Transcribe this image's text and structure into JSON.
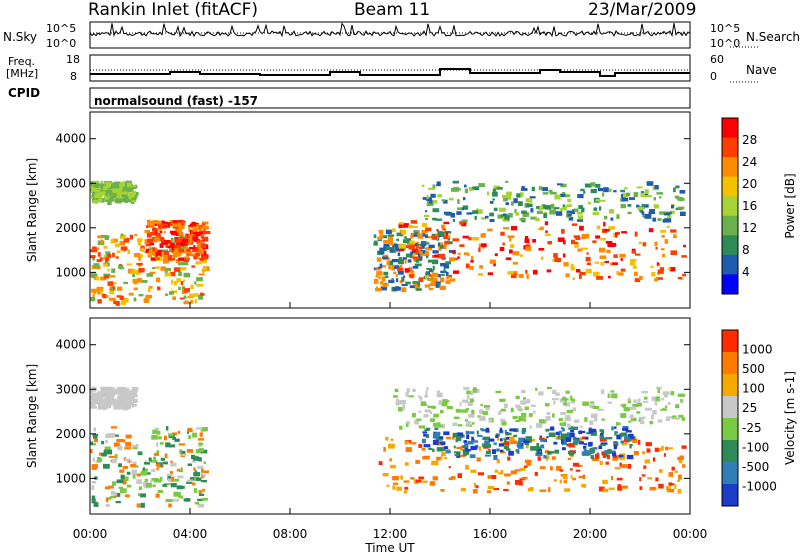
{
  "header": {
    "station": "Rankin Inlet (fitACF)",
    "beam": "Beam 11",
    "date": "23/Mar/2009"
  },
  "strips": {
    "nsky_label": "N.Sky",
    "nsearch_label": "N.Search",
    "nsky_ticks": [
      "10^5",
      "10^0"
    ],
    "nsearch_ticks": [
      "10^5",
      "10^0"
    ],
    "freq_label_1": "Freq.",
    "freq_label_2": "[MHz]",
    "freq_ticks": [
      "18",
      "8"
    ],
    "nave_label": "Nave",
    "nave_ticks": [
      "60",
      "0"
    ],
    "cpid_label": "CPID",
    "cpid_value": "normalsound (fast) -157"
  },
  "chart_data": [
    {
      "type": "heatmap",
      "name": "power",
      "ylabel": "Slant Range [km]",
      "yticks": [
        "1000",
        "2000",
        "3000",
        "4000"
      ],
      "ylim": [
        200,
        4600
      ],
      "colorbar_label": "Power [dB]",
      "colorbar_ticks": [
        "28",
        "24",
        "20",
        "16",
        "12",
        "8",
        "4"
      ],
      "colors": [
        "#0000ff",
        "#1f5cb0",
        "#2e8b57",
        "#6ab04c",
        "#a7d434",
        "#f2c200",
        "#ff8c00",
        "#ff3d00",
        "#ff0000"
      ]
    },
    {
      "type": "heatmap",
      "name": "velocity",
      "ylabel": "Slant Range [km]",
      "yticks": [
        "1000",
        "2000",
        "3000",
        "4000"
      ],
      "ylim": [
        200,
        4600
      ],
      "colorbar_label": "Velocity [m s-1]",
      "colorbar_ticks": [
        "1000",
        "500",
        "100",
        "25",
        "-25",
        "-100",
        "-500",
        "-1000"
      ],
      "colors": [
        "#1a3cc8",
        "#2f7fb6",
        "#2e8b57",
        "#7ac943",
        "#c8c8c8",
        "#f5a800",
        "#ff7a00",
        "#ff2a00"
      ]
    }
  ],
  "xaxis": {
    "ticks": [
      "00:00",
      "04:00",
      "08:00",
      "12:00",
      "16:00",
      "20:00",
      "00:00"
    ],
    "label": "Time UT"
  }
}
